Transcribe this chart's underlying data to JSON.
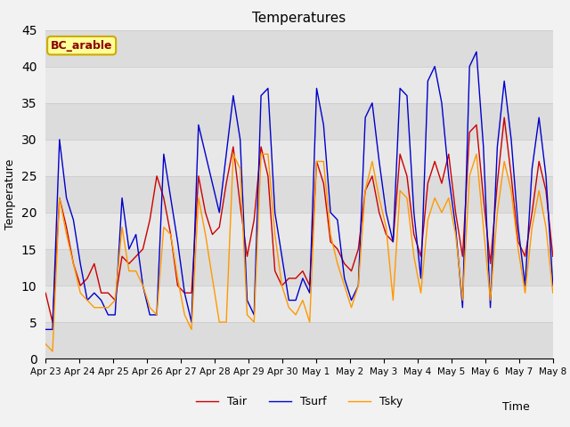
{
  "title": "Temperatures",
  "xlabel": "Time",
  "ylabel": "Temperature",
  "ylim": [
    0,
    45
  ],
  "legend_label": "BC_arable",
  "line_labels": [
    "Tair",
    "Tsurf",
    "Tsky"
  ],
  "line_colors": [
    "#cc0000",
    "#0000cc",
    "#ff9900"
  ],
  "fig_facecolor": "#f2f2f2",
  "plot_bg_color": "#e8e8e8",
  "band_colors": [
    "#dcdcdc",
    "#e8e8e8"
  ],
  "tick_labels": [
    "Apr 23",
    "Apr 24",
    "Apr 25",
    "Apr 26",
    "Apr 27",
    "Apr 28",
    "Apr 29",
    "Apr 30",
    "May 1",
    "May 2",
    "May 3",
    "May 4",
    "May 5",
    "May 6",
    "May 7",
    "May 8"
  ],
  "Tair": [
    9,
    5,
    22,
    18,
    13,
    10,
    11,
    13,
    9,
    9,
    8,
    14,
    13,
    14,
    15,
    19,
    25,
    22,
    17,
    10,
    9,
    9,
    25,
    20,
    17,
    18,
    24,
    29,
    21,
    14,
    19,
    29,
    25,
    12,
    10,
    11,
    11,
    12,
    10,
    27,
    24,
    16,
    15,
    13,
    12,
    15,
    23,
    25,
    20,
    17,
    16,
    28,
    25,
    17,
    14,
    24,
    27,
    24,
    28,
    20,
    14,
    31,
    32,
    22,
    13,
    24,
    33,
    25,
    16,
    14,
    20,
    27,
    23,
    14
  ],
  "Tsurf": [
    4,
    4,
    30,
    22,
    19,
    13,
    8,
    9,
    8,
    6,
    6,
    22,
    15,
    17,
    10,
    6,
    6,
    28,
    22,
    16,
    9,
    5,
    32,
    28,
    24,
    20,
    28,
    36,
    30,
    8,
    6,
    36,
    37,
    20,
    14,
    8,
    8,
    11,
    9,
    37,
    32,
    20,
    19,
    11,
    8,
    10,
    33,
    35,
    27,
    20,
    16,
    37,
    36,
    20,
    11,
    38,
    40,
    35,
    25,
    18,
    7,
    40,
    42,
    29,
    7,
    29,
    38,
    30,
    18,
    10,
    26,
    33,
    25,
    10
  ],
  "Tsky": [
    2,
    1,
    22,
    17,
    13,
    9,
    8,
    7,
    7,
    7,
    8,
    18,
    12,
    12,
    10,
    7,
    6,
    18,
    17,
    11,
    6,
    4,
    22,
    17,
    11,
    5,
    5,
    28,
    26,
    6,
    5,
    28,
    28,
    17,
    10,
    7,
    6,
    8,
    5,
    27,
    27,
    17,
    13,
    10,
    7,
    10,
    23,
    27,
    22,
    18,
    8,
    23,
    22,
    14,
    9,
    19,
    22,
    20,
    22,
    17,
    8,
    25,
    28,
    18,
    8,
    20,
    27,
    23,
    15,
    9,
    18,
    23,
    18,
    9
  ]
}
